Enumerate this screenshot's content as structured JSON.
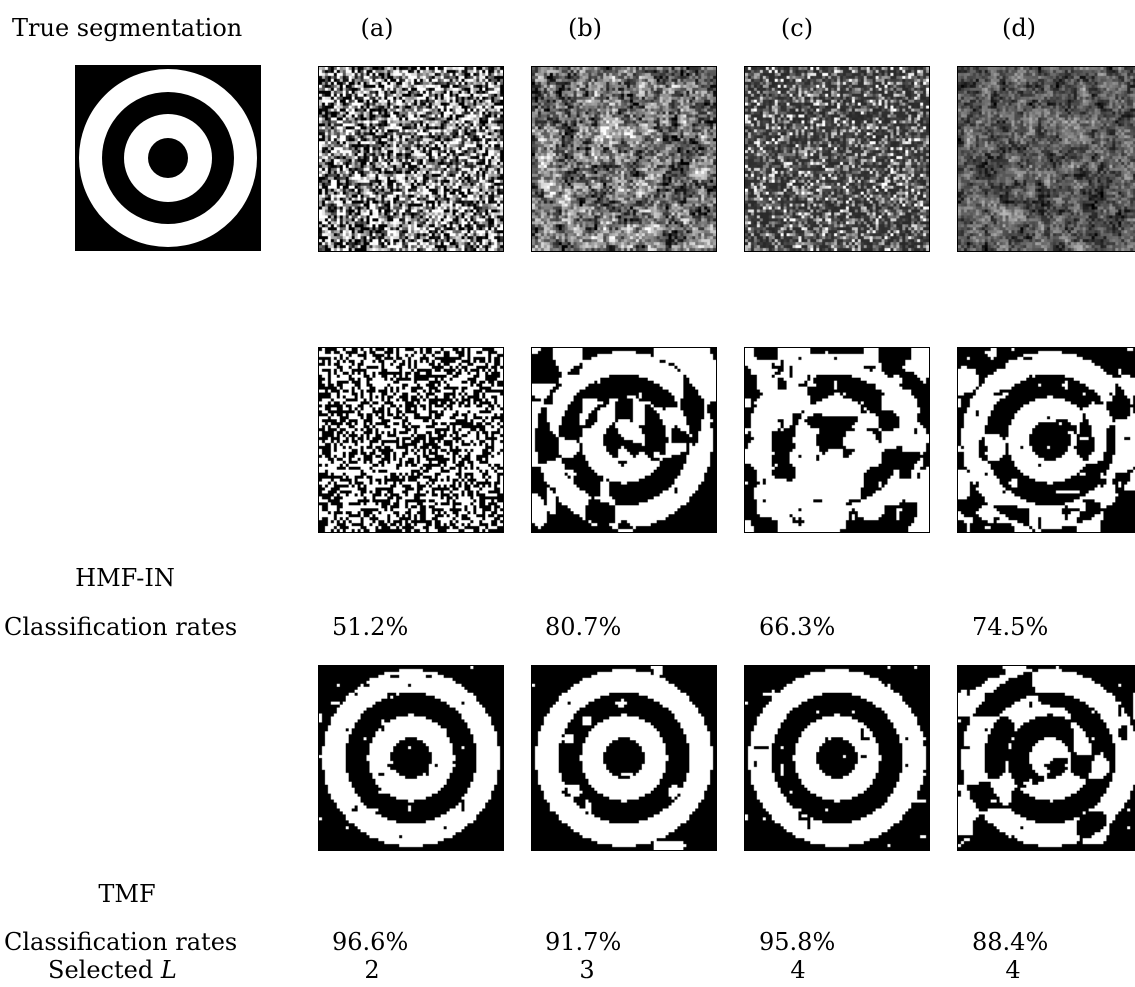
{
  "header": {
    "true_label": "True segmentation",
    "columns": [
      "(a)",
      "(b)",
      "(c)",
      "(d)"
    ]
  },
  "hmf_in": {
    "method": "HMF-IN",
    "rates_label": "Classification rates",
    "rates": [
      "51.2%",
      "80.7%",
      "66.3%",
      "74.5%"
    ]
  },
  "tmf": {
    "method": "TMF",
    "rates_label": "Classification rates",
    "rates": [
      "96.6%",
      "91.7%",
      "95.8%",
      "88.4%"
    ],
    "selected_label_prefix": "Selected",
    "selected_label_var": "L",
    "selected_L": [
      "2",
      "3",
      "4",
      "4"
    ]
  }
}
